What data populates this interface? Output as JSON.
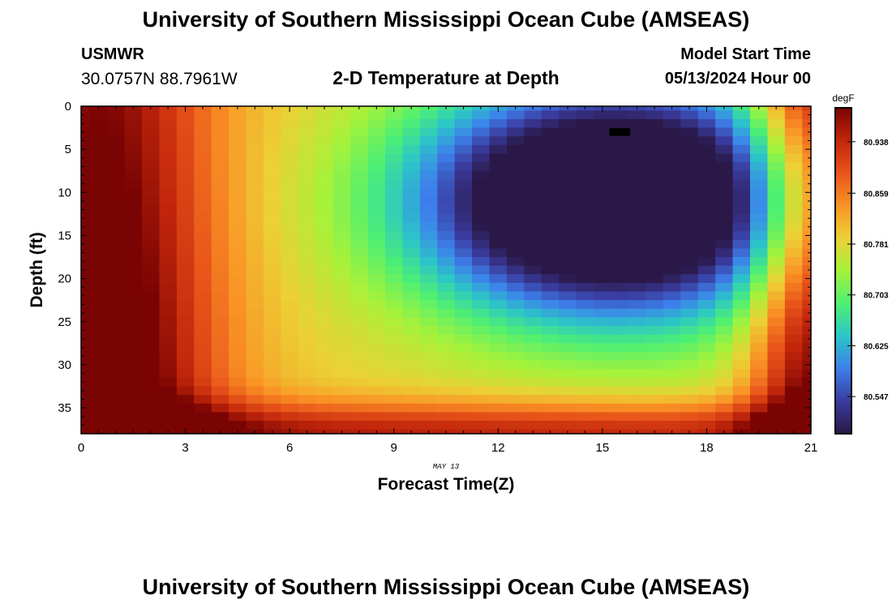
{
  "header": {
    "title": "University of Southern Mississippi Ocean Cube (AMSEAS)",
    "station": "USMWR",
    "coordinates": "30.0757N  88.7961W",
    "model_start_label": "Model Start Time",
    "model_start_value": "05/13/2024 Hour 00"
  },
  "footer": {
    "title": "University of Southern Mississippi Ocean Cube (AMSEAS)"
  },
  "chart_data": {
    "type": "heatmap",
    "title": "2-D Temperature at Depth",
    "xlabel": "Forecast Time(Z)",
    "ylabel": "Depth (ft)",
    "x_date_label": "MAY 13",
    "xlim": [
      0,
      21
    ],
    "ylim": [
      0,
      38
    ],
    "x_ticks": [
      0,
      3,
      6,
      9,
      12,
      15,
      18,
      21
    ],
    "y_ticks": [
      0,
      5,
      10,
      15,
      20,
      25,
      30,
      35
    ],
    "grid": false,
    "colorbar": {
      "unit": "degF",
      "ticks": [
        "80.938",
        "80.859",
        "80.781",
        "80.703",
        "80.625",
        "80.547"
      ],
      "tick_values": [
        80.938,
        80.859,
        80.781,
        80.703,
        80.625,
        80.547
      ],
      "range": [
        80.49,
        80.99
      ],
      "colors": [
        "#2a1848",
        "#3a3b9e",
        "#3d80ec",
        "#2bc6c8",
        "#4ef072",
        "#a6f23a",
        "#ecd035",
        "#fa9325",
        "#e8541a",
        "#c1260b",
        "#7a0403"
      ]
    },
    "time_steps": [
      0,
      0.5,
      1,
      1.5,
      2,
      2.5,
      3,
      3.5,
      4,
      4.5,
      5,
      5.5,
      6,
      6.5,
      7,
      7.5,
      8,
      8.5,
      9,
      9.5,
      10,
      10.5,
      11,
      11.5,
      12,
      12.5,
      13,
      13.5,
      14,
      14.5,
      15,
      15.5,
      16,
      16.5,
      17,
      17.5,
      18,
      18.5,
      19,
      19.5,
      20,
      20.5,
      21
    ],
    "depth_levels": [
      0,
      1,
      2,
      3,
      4,
      5,
      6,
      7,
      8,
      9,
      10,
      11,
      12,
      13,
      14,
      15,
      16,
      17,
      18,
      19,
      20,
      21,
      22,
      23,
      24,
      25,
      26,
      27,
      28,
      29,
      30,
      31,
      32,
      33,
      34,
      35,
      36,
      37,
      38
    ],
    "temperature_degF": "computed field: 2-D temperature at depth; warm (~80.97) near surface/bottom at forecast hours 0-3 and 20-21, cold core (~80.50) near hour 15 at 3-20 ft",
    "annotations": [
      {
        "type": "missing-value marker",
        "x": 15.5,
        "depth": 3
      }
    ]
  }
}
